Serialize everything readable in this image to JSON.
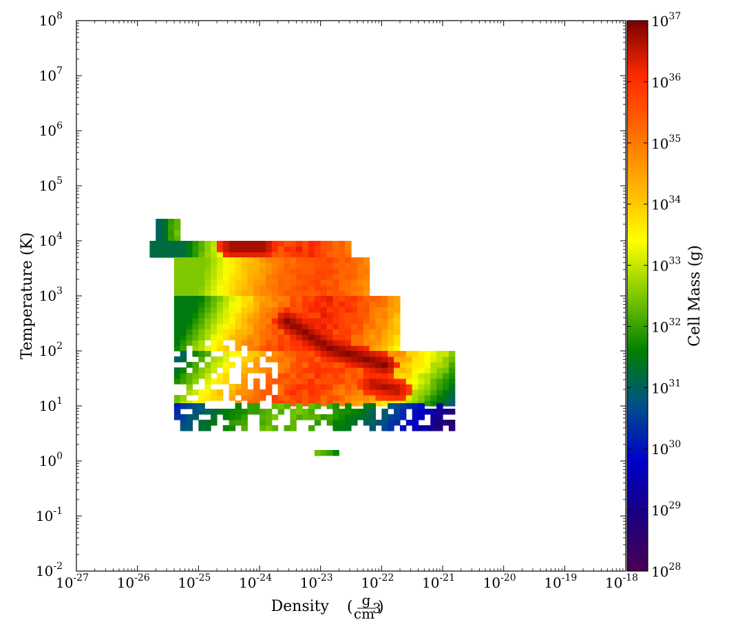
{
  "chart_data": {
    "type": "heatmap",
    "title": "",
    "xlabel": "Density",
    "xlabel_unit": {
      "numerator": "g",
      "denominator": "cm",
      "denominator_exponent": "3"
    },
    "ylabel": "Temperature",
    "ylabel_unit": "K",
    "colorbar_label": "Cell Mass",
    "colorbar_unit": "g",
    "x_scale": "log",
    "y_scale": "log",
    "color_scale": "log",
    "xlim": [
      1e-27,
      1e-18
    ],
    "ylim": [
      0.01,
      100000000.0
    ],
    "clim": [
      1e+28,
      1e+37
    ],
    "x_ticks": [
      {
        "base": "10",
        "exp": "-27"
      },
      {
        "base": "10",
        "exp": "-26"
      },
      {
        "base": "10",
        "exp": "-25"
      },
      {
        "base": "10",
        "exp": "-24"
      },
      {
        "base": "10",
        "exp": "-23"
      },
      {
        "base": "10",
        "exp": "-22"
      },
      {
        "base": "10",
        "exp": "-21"
      },
      {
        "base": "10",
        "exp": "-20"
      },
      {
        "base": "10",
        "exp": "-19"
      },
      {
        "base": "10",
        "exp": "-18"
      }
    ],
    "y_ticks": [
      {
        "base": "10",
        "exp": "-2"
      },
      {
        "base": "10",
        "exp": "-1"
      },
      {
        "base": "10",
        "exp": "0"
      },
      {
        "base": "10",
        "exp": "1"
      },
      {
        "base": "10",
        "exp": "2"
      },
      {
        "base": "10",
        "exp": "3"
      },
      {
        "base": "10",
        "exp": "4"
      },
      {
        "base": "10",
        "exp": "5"
      },
      {
        "base": "10",
        "exp": "6"
      },
      {
        "base": "10",
        "exp": "7"
      },
      {
        "base": "10",
        "exp": "8"
      }
    ],
    "colorbar_ticks": [
      {
        "base": "10",
        "exp": "28"
      },
      {
        "base": "10",
        "exp": "29"
      },
      {
        "base": "10",
        "exp": "30"
      },
      {
        "base": "10",
        "exp": "31"
      },
      {
        "base": "10",
        "exp": "32"
      },
      {
        "base": "10",
        "exp": "33"
      },
      {
        "base": "10",
        "exp": "34"
      },
      {
        "base": "10",
        "exp": "35"
      },
      {
        "base": "10",
        "exp": "36"
      },
      {
        "base": "10",
        "exp": "37"
      }
    ],
    "colormap": [
      "#4b0055",
      "#1a0080",
      "#0000c8",
      "#00508c",
      "#008000",
      "#7ec800",
      "#ffff00",
      "#ffb000",
      "#ff6a00",
      "#ff2a00",
      "#7a0000"
    ],
    "bins_per_decade": 10,
    "cell_mass_log10_by_temperature_band": [
      {
        "log10_T_range": [
          4.0,
          4.4
        ],
        "log10_rho_range": [
          -25.7,
          -25.3
        ],
        "log10_mass_range": [
          31.0,
          32.6
        ]
      },
      {
        "log10_T_range": [
          3.7,
          4.0
        ],
        "log10_rho_range": [
          -25.8,
          -22.5
        ],
        "log10_mass_range": [
          31.2,
          36.9
        ]
      },
      {
        "log10_T_range": [
          3.0,
          3.7
        ],
        "log10_rho_range": [
          -25.4,
          -22.2
        ],
        "log10_mass_range": [
          32.5,
          36.2
        ]
      },
      {
        "log10_T_range": [
          2.0,
          3.0
        ],
        "log10_rho_range": [
          -25.4,
          -21.7
        ],
        "log10_mass_range": [
          31.5,
          36.9
        ]
      },
      {
        "log10_T_range": [
          1.0,
          2.0
        ],
        "log10_rho_range": [
          -25.4,
          -20.8
        ],
        "log10_mass_range": [
          30.3,
          36.8
        ]
      },
      {
        "log10_T_range": [
          0.55,
          1.0
        ],
        "log10_rho_range": [
          -25.4,
          -20.8
        ],
        "log10_mass_range": [
          28.6,
          33.0
        ]
      },
      {
        "log10_T_range": [
          0.1,
          0.2
        ],
        "log10_rho_range": [
          -23.3,
          -22.7
        ],
        "log10_mass_range": [
          31.5,
          32.5
        ]
      }
    ],
    "ridge_lines": [
      {
        "log10_rho": [
          -24.5,
          -24.0
        ],
        "log10_T": [
          3.85,
          3.85
        ],
        "log10_mass": 36.9
      },
      {
        "log10_rho": [
          -23.6,
          -22.9,
          -22.3,
          -22.0
        ],
        "log10_T": [
          2.5,
          2.0,
          1.8,
          1.7
        ],
        "log10_mass": 36.9
      },
      {
        "log10_rho": [
          -22.2,
          -21.8
        ],
        "log10_T": [
          1.35,
          1.25
        ],
        "log10_mass": 36.7
      }
    ]
  }
}
